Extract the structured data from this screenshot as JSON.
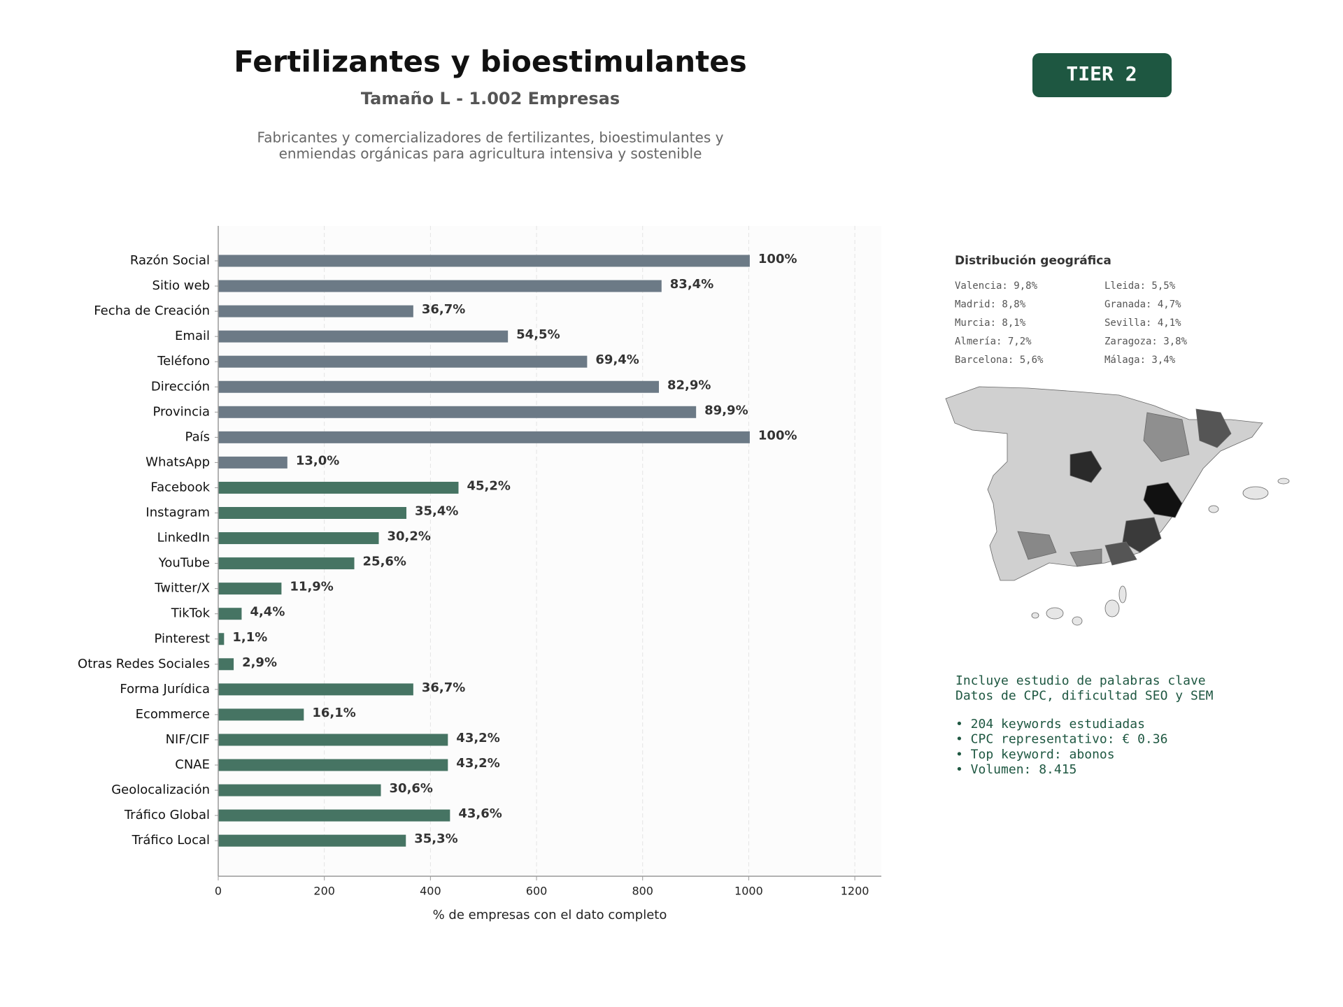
{
  "chart_data": {
    "type": "barh",
    "title": "Fertilizantes y bioestimulantes",
    "subtitle": "Tamaño L - 1.002 Empresas",
    "description": [
      "Fabricantes y comercializadores de fertilizantes, bioestimulantes y",
      "enmiendas orgánicas para agricultura intensiva y sostenible"
    ],
    "xlabel": "% de empresas con el dato completo",
    "categories": [
      "Razón Social",
      "Sitio web",
      "Fecha de Creación",
      "Email",
      "Teléfono",
      "Dirección",
      "Provincia",
      "País",
      "WhatsApp",
      "Facebook",
      "Instagram",
      "LinkedIn",
      "YouTube",
      "Twitter/X",
      "TikTok",
      "Pinterest",
      "Otras Redes Sociales",
      "Forma Jurídica",
      "Ecommerce",
      "NIF/CIF",
      "CNAE",
      "Geolocalización",
      "Tráfico Global",
      "Tráfico Local"
    ],
    "values": [
      1002,
      835.7,
      367.7,
      546.1,
      695.4,
      830.7,
      900.8,
      1002,
      130.3,
      452.9,
      354.7,
      302.6,
      256.5,
      119.2,
      44.1,
      11.0,
      29.1,
      367.7,
      161.3,
      432.9,
      432.9,
      306.6,
      436.9,
      353.7
    ],
    "value_labels": [
      "100%",
      "83,4%",
      "36,7%",
      "54,5%",
      "69,4%",
      "82,9%",
      "89,9%",
      "100%",
      "13,0%",
      "45,2%",
      "35,4%",
      "30,2%",
      "25,6%",
      "11,9%",
      "4,4%",
      "1,1%",
      "2,9%",
      "36,7%",
      "16,1%",
      "43,2%",
      "43,2%",
      "30,6%",
      "43,6%",
      "35,3%"
    ],
    "colors": [
      "#6c7a86",
      "#6c7a86",
      "#6c7a86",
      "#6c7a86",
      "#6c7a86",
      "#6c7a86",
      "#6c7a86",
      "#6c7a86",
      "#6c7a86",
      "#467463",
      "#467463",
      "#467463",
      "#467463",
      "#467463",
      "#467463",
      "#467463",
      "#467463",
      "#467463",
      "#467463",
      "#467463",
      "#467463",
      "#467463",
      "#467463",
      "#467463"
    ],
    "xlim": [
      0,
      1250
    ],
    "xticks": [
      0,
      200,
      400,
      600,
      800,
      1000,
      1200
    ],
    "grid": true
  },
  "badge": "TIER 2",
  "geo": {
    "title": "Distribución geográfica",
    "items": [
      "Valencia: 9,8%",
      "Madrid: 8,8%",
      "Murcia: 8,1%",
      "Almería: 7,2%",
      "Barcelona: 5,6%",
      "Lleida: 5,5%",
      "Granada: 4,7%",
      "Sevilla: 4,1%",
      "Zaragoza: 3,8%",
      "Málaga: 3,4%"
    ]
  },
  "keywords": {
    "lines": [
      "Incluye estudio de palabras clave",
      "Datos de CPC, dificultad SEO y SEM"
    ],
    "bullets": [
      "• 204 keywords estudiadas",
      "• CPC representativo: € 0.36",
      "• Top keyword: abonos",
      "• Volumen: 8.415"
    ]
  }
}
